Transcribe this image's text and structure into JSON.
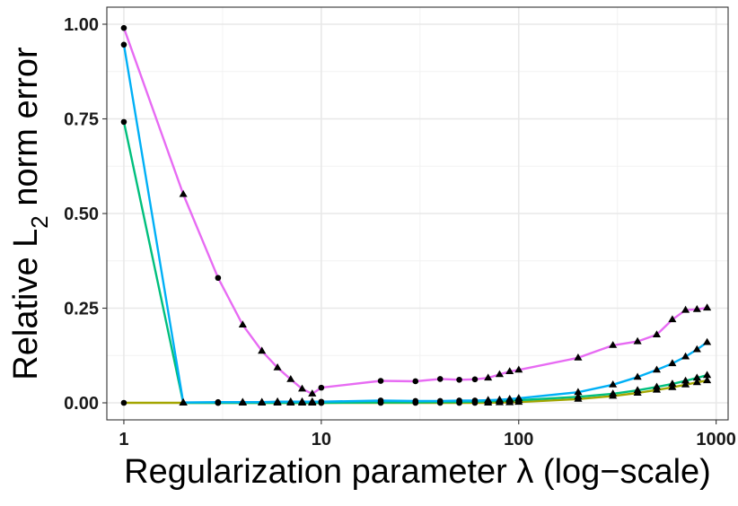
{
  "chart_data": {
    "type": "line",
    "title": "",
    "xlabel": "Regularization parameter λ (log−scale)",
    "ylabel": {
      "pre": "Relative L",
      "sub": "2",
      "post": " norm error"
    },
    "x_scale": "log10",
    "xlim": [
      0.82,
      1150
    ],
    "ylim": [
      -0.045,
      1.045
    ],
    "x_ticks": [
      1,
      10,
      100,
      1000
    ],
    "x_tick_labels": [
      "1",
      "10",
      "100",
      "1000"
    ],
    "y_ticks": [
      0,
      0.25,
      0.5,
      0.75,
      1.0
    ],
    "y_tick_labels": [
      "0.00",
      "0.25",
      "0.50",
      "0.75",
      "1.00"
    ],
    "grid": true,
    "legend": "none",
    "x": [
      1,
      2,
      3,
      4,
      5,
      6,
      7,
      8,
      9,
      10,
      20,
      30,
      40,
      50,
      60,
      70,
      80,
      90,
      100,
      200,
      300,
      400,
      500,
      600,
      700,
      800,
      900
    ],
    "markers": [
      "circle",
      "triangle",
      "circle",
      "triangle",
      "triangle",
      "triangle",
      "triangle",
      "triangle",
      "triangle",
      "circle",
      "circle",
      "circle",
      "circle",
      "circle",
      "circle",
      "triangle",
      "triangle",
      "triangle",
      "triangle",
      "triangle",
      "triangle",
      "triangle",
      "triangle",
      "triangle",
      "triangle",
      "triangle",
      "triangle"
    ],
    "series": [
      {
        "color": "#a3a500",
        "values": [
          0.0,
          0.0,
          0.0,
          0.0,
          0.0,
          0.0,
          0.0,
          0.0,
          0.0,
          0.0,
          0.0,
          0.0,
          0.0,
          0.0,
          0.0,
          0.0,
          0.001,
          0.001,
          0.002,
          0.01,
          0.018,
          0.026,
          0.034,
          0.041,
          0.048,
          0.054,
          0.059
        ]
      },
      {
        "color": "#00bf7d",
        "values": [
          0.742,
          0.0,
          0.0,
          0.0,
          0.0,
          0.0,
          0.0,
          0.0,
          0.0,
          0.0,
          0.001,
          0.001,
          0.002,
          0.002,
          0.003,
          0.004,
          0.005,
          0.006,
          0.007,
          0.016,
          0.024,
          0.033,
          0.042,
          0.05,
          0.058,
          0.066,
          0.073
        ]
      },
      {
        "color": "#00b0f6",
        "values": [
          0.946,
          0.001,
          0.002,
          0.002,
          0.002,
          0.003,
          0.003,
          0.003,
          0.003,
          0.003,
          0.006,
          0.005,
          0.005,
          0.006,
          0.006,
          0.007,
          0.008,
          0.01,
          0.012,
          0.028,
          0.048,
          0.068,
          0.087,
          0.104,
          0.122,
          0.141,
          0.16
        ]
      },
      {
        "color": "#e76bf3",
        "values": [
          0.99,
          0.551,
          0.33,
          0.206,
          0.137,
          0.093,
          0.062,
          0.037,
          0.024,
          0.04,
          0.058,
          0.057,
          0.063,
          0.061,
          0.062,
          0.066,
          0.075,
          0.083,
          0.087,
          0.119,
          0.152,
          0.162,
          0.18,
          0.22,
          0.245,
          0.247,
          0.251
        ]
      }
    ]
  }
}
